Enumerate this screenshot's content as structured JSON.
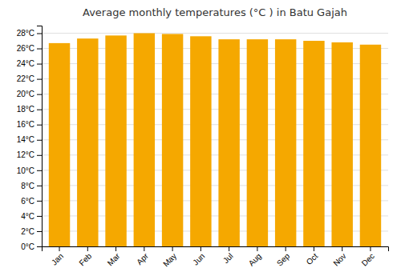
{
  "chart_data": {
    "type": "bar",
    "title": "Average monthly temperatures (°C ) in Batu Gajah",
    "categories": [
      "Jan",
      "Feb",
      "Mar",
      "Apr",
      "May",
      "Jun",
      "Jul",
      "Aug",
      "Sep",
      "Oct",
      "Nov",
      "Dec"
    ],
    "values": [
      26.7,
      27.3,
      27.7,
      28.0,
      27.9,
      27.6,
      27.2,
      27.2,
      27.2,
      27.0,
      26.8,
      26.5
    ],
    "color": "#F5A800",
    "ylim": [
      0,
      29
    ],
    "yticks": [
      {
        "value": 0,
        "label": "0°C"
      },
      {
        "value": 2,
        "label": "2°C"
      },
      {
        "value": 4,
        "label": "4°C"
      },
      {
        "value": 6,
        "label": "6°C"
      },
      {
        "value": 8,
        "label": "8°C"
      },
      {
        "value": 10,
        "label": "10°C"
      },
      {
        "value": 12,
        "label": "12°C"
      },
      {
        "value": 14,
        "label": "14°C"
      },
      {
        "value": 16,
        "label": "16°C"
      },
      {
        "value": 18,
        "label": "18°C"
      },
      {
        "value": 20,
        "label": "20°C"
      },
      {
        "value": 22,
        "label": "22°C"
      },
      {
        "value": 24,
        "label": "24°C"
      },
      {
        "value": 26,
        "label": "26°C"
      },
      {
        "value": 28,
        "label": "28°C"
      }
    ],
    "grid": true
  }
}
